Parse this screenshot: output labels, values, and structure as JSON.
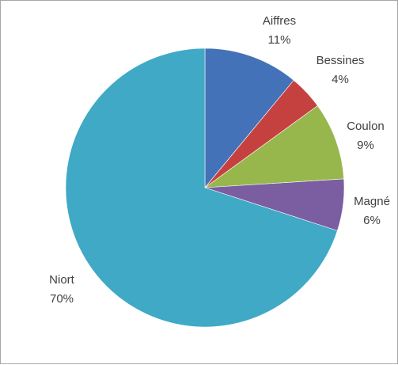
{
  "chart_data": {
    "type": "pie",
    "title": "",
    "legend": "none",
    "slices": [
      {
        "name": "Aiffres",
        "value": 11,
        "label": "11%",
        "color": "#4472b8"
      },
      {
        "name": "Bessines",
        "value": 4,
        "label": "4%",
        "color": "#c5413f"
      },
      {
        "name": "Coulon",
        "value": 9,
        "label": "9%",
        "color": "#97b74c"
      },
      {
        "name": "Magné",
        "value": 6,
        "label": "6%",
        "color": "#7b5ea1"
      },
      {
        "name": "Niort",
        "value": 70,
        "label": "70%",
        "color": "#3fa9c6"
      }
    ]
  }
}
